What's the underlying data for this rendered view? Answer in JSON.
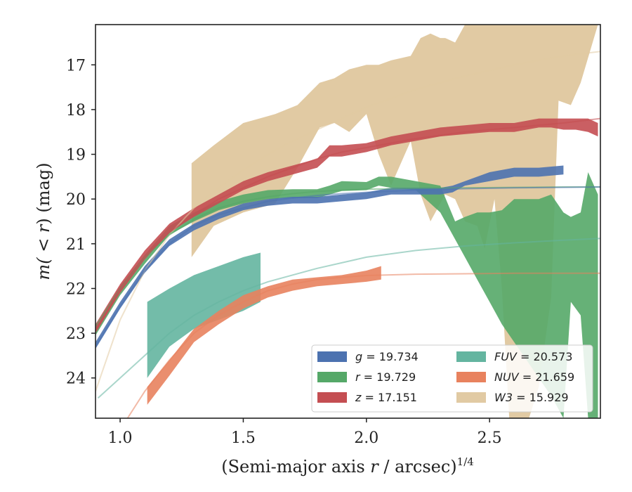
{
  "chart_data": {
    "type": "area",
    "xlabel_main": "(Semi-major axis ",
    "xlabel_var": "r",
    "xlabel_rest": " / arcsec)",
    "xlabel_sup": "1/4",
    "ylabel_main": "m(",
    "ylabel_ineq": " < r",
    "ylabel_rest": ") (mag)",
    "xlim": [
      0.9,
      2.95
    ],
    "ylim": [
      24.9,
      16.1
    ],
    "y_inverted": true,
    "xticks": [
      1.0,
      1.5,
      2.0,
      2.5
    ],
    "xtick_labels": [
      "1.0",
      "1.5",
      "2.0",
      "2.5"
    ],
    "yticks": [
      17,
      18,
      19,
      20,
      21,
      22,
      23,
      24
    ],
    "ytick_labels": [
      "17",
      "18",
      "19",
      "20",
      "21",
      "22",
      "23",
      "24"
    ],
    "grid": false,
    "legend_position": "lower-right",
    "series": [
      {
        "key": "W3",
        "name": "W3 = 15.929",
        "legend_var": "W3",
        "legend_value": "= 15.929",
        "color": "#e1caa3",
        "band_x": [
          1.29,
          1.38,
          1.5,
          1.63,
          1.72,
          1.81,
          1.87,
          1.93,
          2.0,
          2.05,
          2.1,
          2.18,
          2.22,
          2.26,
          2.3,
          2.32,
          2.36,
          2.4,
          2.45,
          2.48,
          2.52,
          2.55,
          2.58,
          2.62,
          2.66,
          2.7,
          2.75,
          2.78,
          2.83,
          2.87,
          2.94
        ],
        "band_upper": [
          19.2,
          18.8,
          18.3,
          18.1,
          17.9,
          17.4,
          17.3,
          17.1,
          17.0,
          17.0,
          16.9,
          16.8,
          16.4,
          16.3,
          16.4,
          16.4,
          16.5,
          16.1,
          16.1,
          16.1,
          16.1,
          16.1,
          16.1,
          16.1,
          16.1,
          16.1,
          16.1,
          16.1,
          16.1,
          16.1,
          16.1
        ],
        "band_lower": [
          21.3,
          20.6,
          20.3,
          20.1,
          19.3,
          18.4,
          18.3,
          18.5,
          18.1,
          19.0,
          19.7,
          18.7,
          19.9,
          20.5,
          20.1,
          19.9,
          20.0,
          20.5,
          20.6,
          21.1,
          20.0,
          22.0,
          24.9,
          24.9,
          24.9,
          24.2,
          22.2,
          17.8,
          17.9,
          17.4,
          16.1
        ],
        "fit_x": [
          0.9,
          1.0,
          1.1,
          1.2,
          1.3,
          1.4,
          1.5,
          1.6,
          1.7,
          1.8,
          1.9,
          2.0,
          2.2,
          2.4,
          2.6,
          2.8,
          2.95
        ],
        "fit_y": [
          24.3,
          22.7,
          21.6,
          20.8,
          20.2,
          19.75,
          19.35,
          19.0,
          18.7,
          18.45,
          18.2,
          17.95,
          17.55,
          17.25,
          17.0,
          16.8,
          16.7
        ]
      },
      {
        "key": "r",
        "name": "r = 19.729",
        "legend_var": "r",
        "legend_value": "= 19.729",
        "color": "#55a868",
        "band_x": [
          0.9,
          1.0,
          1.1,
          1.2,
          1.3,
          1.4,
          1.5,
          1.6,
          1.7,
          1.8,
          1.85,
          1.9,
          2.0,
          2.05,
          2.1,
          2.2,
          2.3,
          2.36,
          2.4,
          2.45,
          2.5,
          2.55,
          2.6,
          2.65,
          2.7,
          2.75,
          2.8,
          2.83,
          2.87,
          2.9,
          2.94
        ],
        "band_upper": [
          22.85,
          21.95,
          21.25,
          20.6,
          20.3,
          20.05,
          19.9,
          19.8,
          19.78,
          19.78,
          19.7,
          19.6,
          19.62,
          19.5,
          19.5,
          19.6,
          19.7,
          20.5,
          20.4,
          20.3,
          20.3,
          20.25,
          20.0,
          20.0,
          20.0,
          19.9,
          20.3,
          20.4,
          20.3,
          19.4,
          19.9
        ],
        "band_lower": [
          23.05,
          22.15,
          21.45,
          20.8,
          20.5,
          20.25,
          20.1,
          20.0,
          19.98,
          19.98,
          19.9,
          19.82,
          19.8,
          19.7,
          19.75,
          19.8,
          20.3,
          20.9,
          21.3,
          21.8,
          22.3,
          22.8,
          23.2,
          23.6,
          24.0,
          24.4,
          24.9,
          22.3,
          22.6,
          24.9,
          24.9
        ],
        "fit_x": [
          0.9,
          1.0,
          1.1,
          1.2,
          1.3,
          1.4,
          1.5,
          1.6,
          1.7,
          1.8,
          1.9,
          2.0,
          2.2,
          2.4,
          2.6,
          2.8,
          2.95
        ],
        "fit_y": [
          22.85,
          22.0,
          21.3,
          20.8,
          20.45,
          20.2,
          20.05,
          19.95,
          19.88,
          19.83,
          19.8,
          19.78,
          19.76,
          19.75,
          19.74,
          19.73,
          19.73
        ]
      },
      {
        "key": "z",
        "name": "z = 17.151",
        "legend_var": "z",
        "legend_value": "= 17.151",
        "color": "#c44e52",
        "band_x": [
          0.9,
          1.0,
          1.1,
          1.2,
          1.3,
          1.4,
          1.5,
          1.6,
          1.7,
          1.8,
          1.85,
          1.9,
          2.0,
          2.1,
          2.2,
          2.3,
          2.4,
          2.5,
          2.6,
          2.7,
          2.75,
          2.8,
          2.85,
          2.9,
          2.94
        ],
        "band_upper": [
          22.8,
          21.9,
          21.15,
          20.55,
          20.2,
          19.9,
          19.6,
          19.4,
          19.25,
          19.1,
          18.8,
          18.8,
          18.75,
          18.6,
          18.5,
          18.4,
          18.35,
          18.3,
          18.3,
          18.2,
          18.2,
          18.2,
          18.2,
          18.2,
          18.3
        ],
        "band_lower": [
          23.0,
          22.1,
          21.35,
          20.75,
          20.4,
          20.1,
          19.8,
          19.6,
          19.45,
          19.3,
          19.05,
          19.05,
          18.95,
          18.8,
          18.7,
          18.6,
          18.55,
          18.5,
          18.5,
          18.4,
          18.4,
          18.45,
          18.45,
          18.5,
          18.6
        ],
        "fit_x": [
          0.9,
          1.0,
          1.1,
          1.2,
          1.3,
          1.4,
          1.5,
          1.6,
          1.7,
          1.8,
          1.9,
          2.0,
          2.2,
          2.4,
          2.6,
          2.8,
          2.95
        ],
        "fit_y": [
          22.95,
          22.0,
          21.3,
          20.75,
          20.35,
          20.0,
          19.75,
          19.5,
          19.3,
          19.1,
          18.95,
          18.85,
          18.65,
          18.5,
          18.4,
          18.3,
          18.2
        ]
      },
      {
        "key": "g",
        "name": "g = 19.734",
        "legend_var": "g",
        "legend_value": "= 19.734",
        "color": "#4c72b0",
        "band_x": [
          0.9,
          1.0,
          1.1,
          1.2,
          1.3,
          1.4,
          1.5,
          1.6,
          1.7,
          1.8,
          1.9,
          2.0,
          2.1,
          2.2,
          2.3,
          2.35,
          2.4,
          2.5,
          2.6,
          2.7,
          2.8
        ],
        "band_upper": [
          23.2,
          22.3,
          21.5,
          20.9,
          20.55,
          20.3,
          20.1,
          20.0,
          19.95,
          19.95,
          19.9,
          19.85,
          19.75,
          19.75,
          19.75,
          19.7,
          19.6,
          19.4,
          19.3,
          19.3,
          19.25
        ],
        "band_lower": [
          23.35,
          22.45,
          21.65,
          21.05,
          20.7,
          20.45,
          20.25,
          20.15,
          20.1,
          20.1,
          20.05,
          20.0,
          19.9,
          19.9,
          19.9,
          19.85,
          19.7,
          19.6,
          19.5,
          19.5,
          19.45
        ],
        "fit_x": [
          0.9,
          1.0,
          1.1,
          1.2,
          1.3,
          1.4,
          1.5,
          1.6,
          1.7,
          1.8,
          1.9,
          2.0,
          2.2,
          2.4,
          2.6,
          2.8,
          2.95
        ],
        "fit_y": [
          23.3,
          22.4,
          21.6,
          21.0,
          20.6,
          20.35,
          20.2,
          20.05,
          19.98,
          19.92,
          19.88,
          19.85,
          19.8,
          19.77,
          19.75,
          19.74,
          19.73
        ]
      },
      {
        "key": "FUV",
        "name": "FUV = 20.573",
        "legend_var": "FUV",
        "legend_value": "= 20.573",
        "color": "#64b5a0",
        "band_x": [
          1.11,
          1.2,
          1.3,
          1.4,
          1.5,
          1.57
        ],
        "band_upper": [
          22.3,
          22.0,
          21.7,
          21.5,
          21.3,
          21.2
        ],
        "band_lower": [
          24.0,
          23.3,
          22.9,
          22.7,
          22.5,
          22.3
        ],
        "fit_x": [
          0.91,
          1.0,
          1.1,
          1.2,
          1.3,
          1.4,
          1.5,
          1.6,
          1.8,
          2.0,
          2.2,
          2.4,
          2.6,
          2.8,
          2.95
        ],
        "fit_y": [
          24.45,
          24.0,
          23.5,
          23.0,
          22.6,
          22.3,
          22.05,
          21.85,
          21.55,
          21.3,
          21.15,
          21.05,
          20.98,
          20.92,
          20.88
        ]
      },
      {
        "key": "NUV",
        "name": "NUV = 21.659",
        "legend_var": "NUV",
        "legend_value": "= 21.659",
        "color": "#e8825e",
        "band_x": [
          1.11,
          1.2,
          1.3,
          1.4,
          1.5,
          1.6,
          1.7,
          1.8,
          1.9,
          2.0,
          2.06
        ],
        "band_upper": [
          24.2,
          23.6,
          22.9,
          22.5,
          22.15,
          21.95,
          21.8,
          21.75,
          21.7,
          21.6,
          21.5
        ],
        "band_lower": [
          24.6,
          23.95,
          23.2,
          22.8,
          22.45,
          22.2,
          22.05,
          21.95,
          21.9,
          21.85,
          21.8
        ],
        "fit_x": [
          1.03,
          1.1,
          1.2,
          1.3,
          1.4,
          1.5,
          1.6,
          1.7,
          1.8,
          1.9,
          2.0,
          2.2,
          2.4,
          2.6,
          2.8,
          2.95
        ],
        "fit_y": [
          24.9,
          24.3,
          23.6,
          23.0,
          22.6,
          22.3,
          22.05,
          21.9,
          21.8,
          21.75,
          21.71,
          21.68,
          21.67,
          21.66,
          21.66,
          21.66
        ]
      }
    ],
    "legend_order": [
      "g",
      "r",
      "z",
      "FUV",
      "NUV",
      "W3"
    ]
  }
}
